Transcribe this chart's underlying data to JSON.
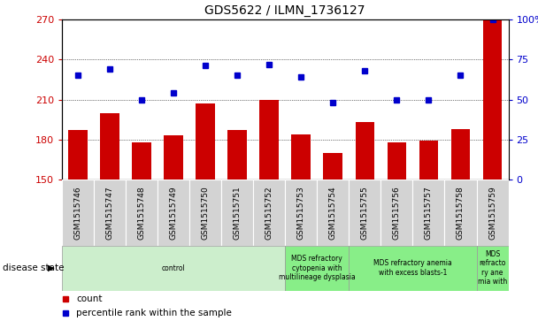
{
  "title": "GDS5622 / ILMN_1736127",
  "samples": [
    "GSM1515746",
    "GSM1515747",
    "GSM1515748",
    "GSM1515749",
    "GSM1515750",
    "GSM1515751",
    "GSM1515752",
    "GSM1515753",
    "GSM1515754",
    "GSM1515755",
    "GSM1515756",
    "GSM1515757",
    "GSM1515758",
    "GSM1515759"
  ],
  "counts": [
    187,
    200,
    178,
    183,
    207,
    187,
    210,
    184,
    170,
    193,
    178,
    179,
    188,
    270
  ],
  "percentile_ranks": [
    65,
    69,
    50,
    54,
    71,
    65,
    72,
    64,
    48,
    68,
    50,
    50,
    65,
    100
  ],
  "ylim_left": [
    150,
    270
  ],
  "ylim_right": [
    0,
    100
  ],
  "yticks_left": [
    150,
    180,
    210,
    240,
    270
  ],
  "yticks_right": [
    0,
    25,
    50,
    75,
    100
  ],
  "bar_color": "#cc0000",
  "dot_color": "#0000cc",
  "disease_groups": [
    {
      "label": "control",
      "start": 0,
      "end": 7,
      "color": "#cceecc"
    },
    {
      "label": "MDS refractory\ncytopenia with\nmultilineage dysplasia",
      "start": 7,
      "end": 9,
      "color": "#88ee88"
    },
    {
      "label": "MDS refractory anemia\nwith excess blasts-1",
      "start": 9,
      "end": 13,
      "color": "#88ee88"
    },
    {
      "label": "MDS\nrefracto\nry ane\nmia with",
      "start": 13,
      "end": 14,
      "color": "#88ee88"
    }
  ],
  "xlabel_disease": "disease state",
  "legend_count": "count",
  "legend_pct": "percentile rank within the sample"
}
